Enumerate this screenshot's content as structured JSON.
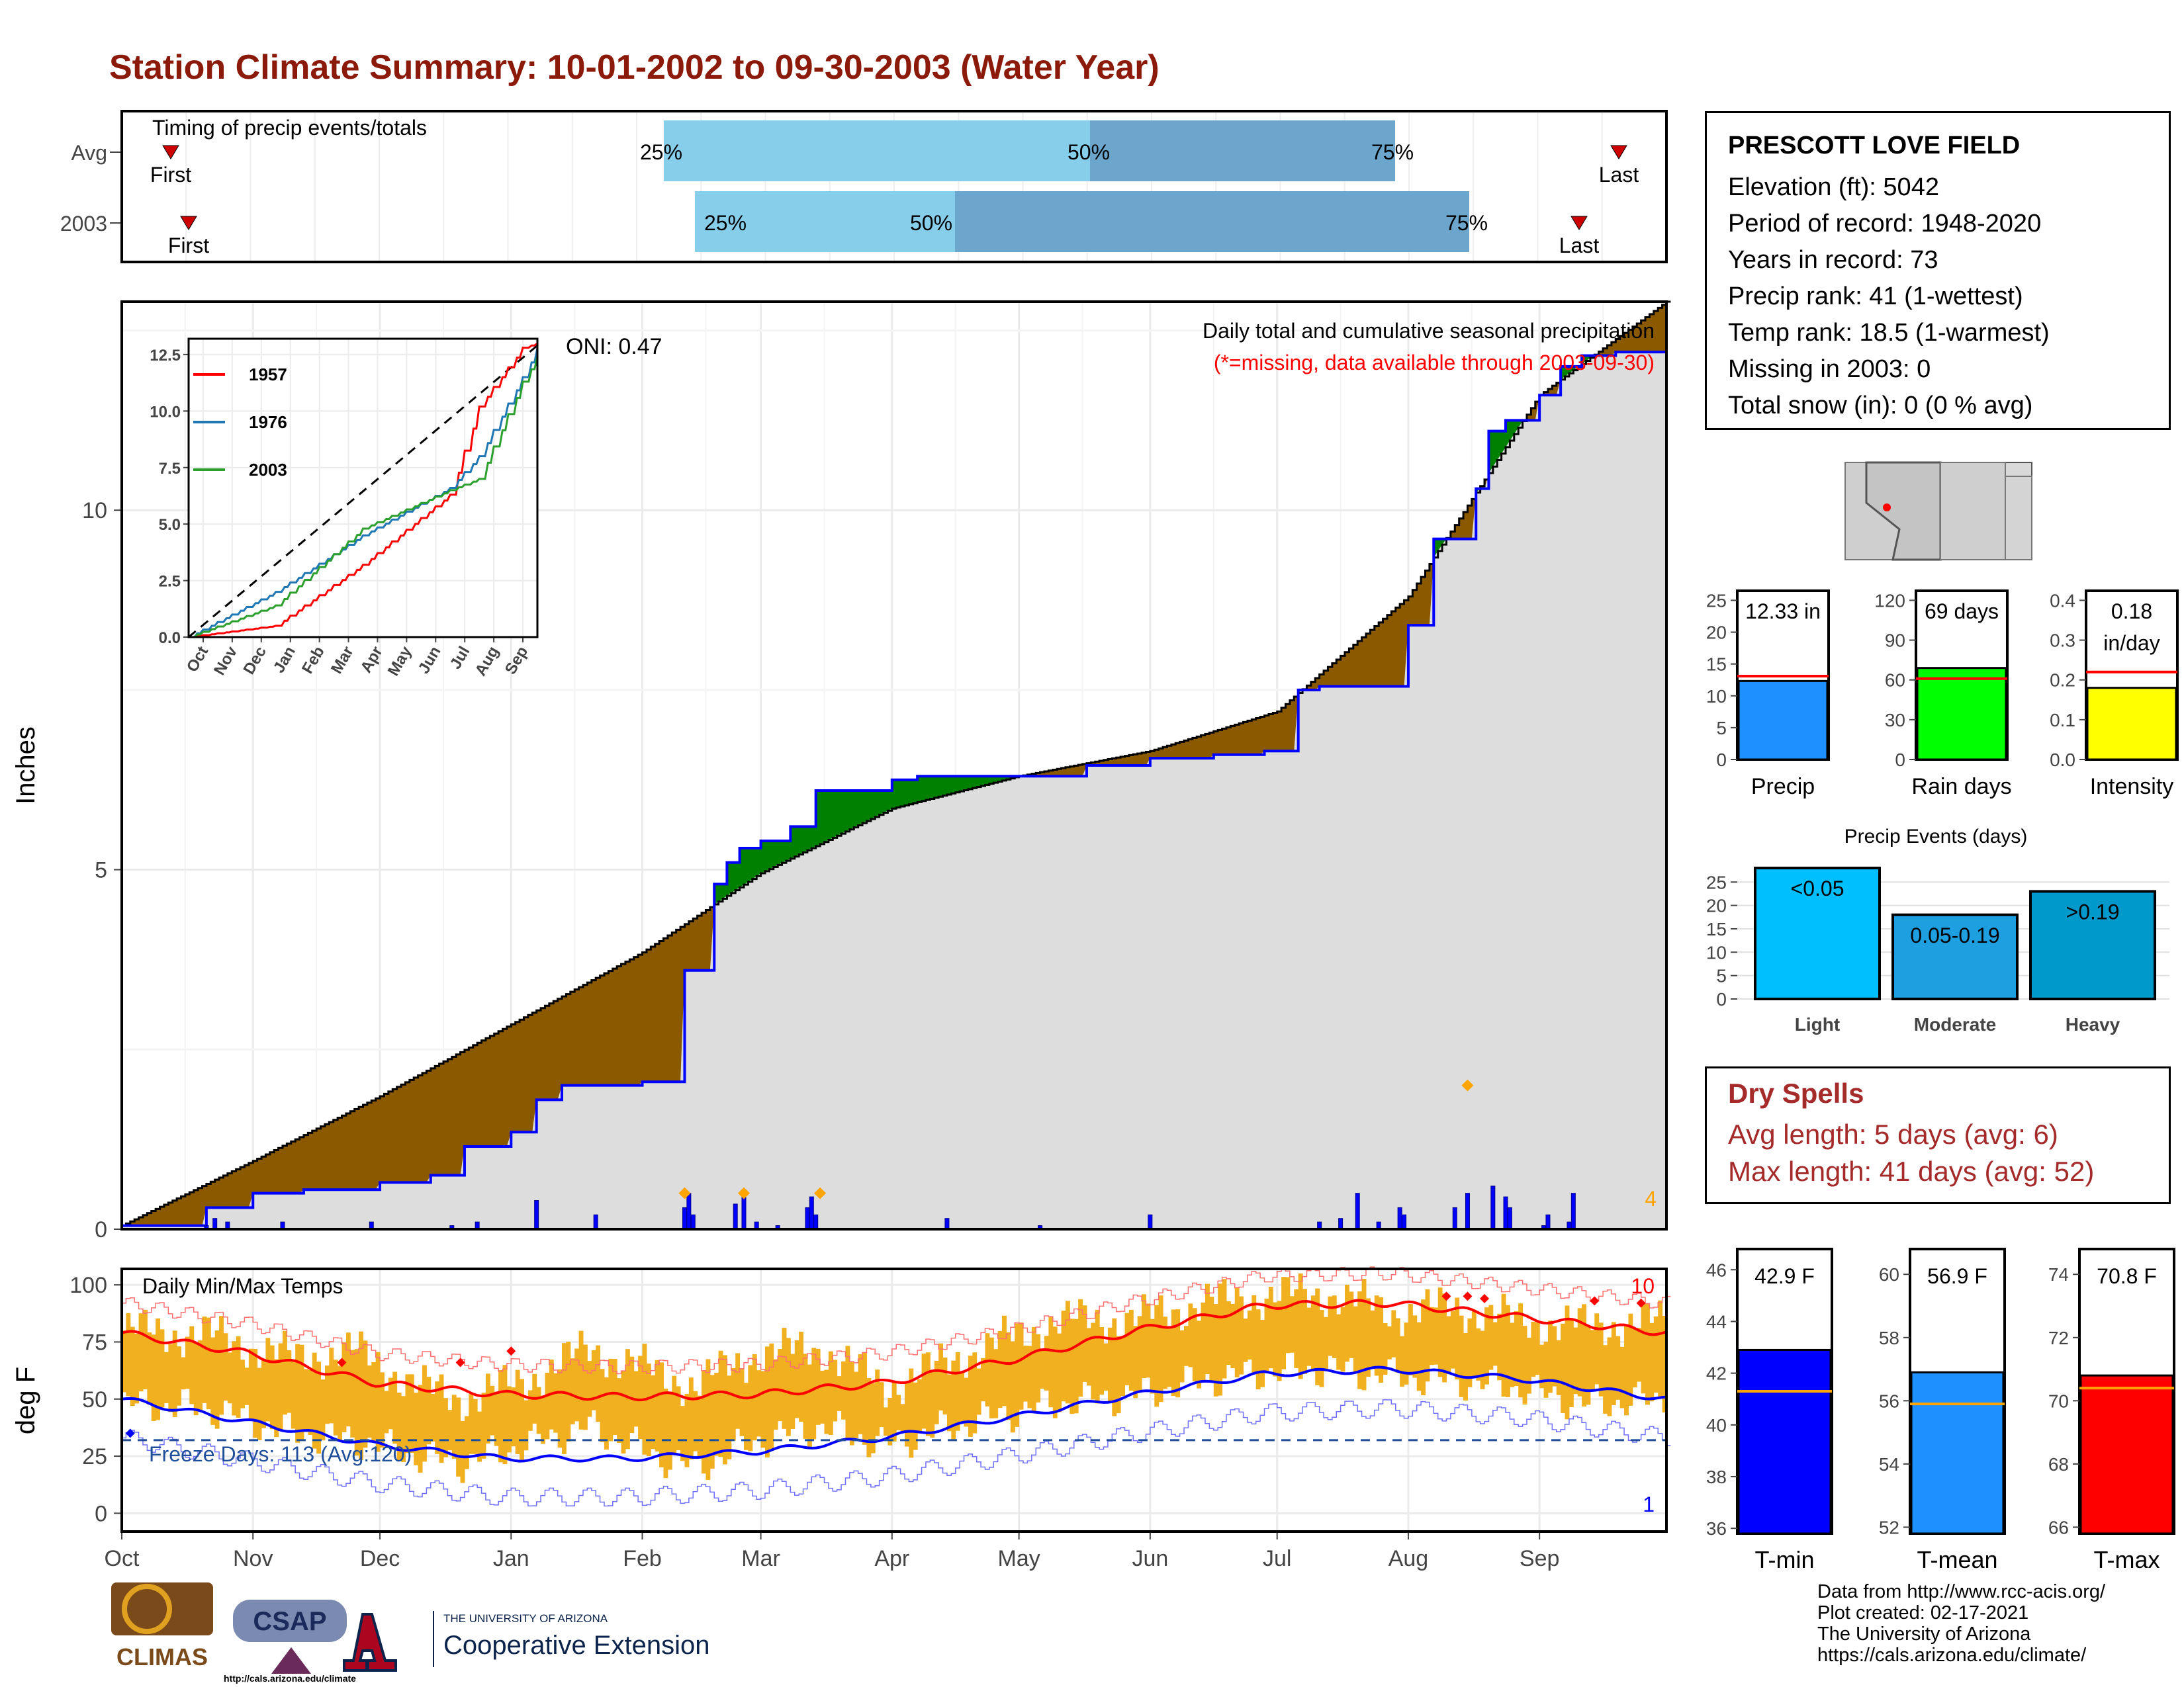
{
  "title": "Station Climate Summary: 10-01-2002 to 09-30-2003 (Water Year)",
  "timing": {
    "label": "Timing of precip events/totals",
    "rows": [
      {
        "name": "Avg",
        "first": "First",
        "last": "Last",
        "p25": "25%",
        "p50": "50%",
        "p75": "75%"
      },
      {
        "name": "2003",
        "first": "First",
        "last": "Last",
        "p25": "25%",
        "p50": "50%",
        "p75": "75%"
      }
    ]
  },
  "station": {
    "name": "PRESCOTT LOVE FIELD",
    "lines": [
      "Elevation (ft): 5042",
      "Period of record: 1948-2020",
      "Years in record: 73",
      "Precip rank: 41 (1-wettest)",
      "Temp rank: 18.5 (1-warmest)",
      "Missing in 2003: 0",
      "Total snow (in): 0 (0 % avg)"
    ]
  },
  "precip_panel": {
    "ylabel": "Inches",
    "title": "Daily total and cumulative seasonal precipitation",
    "subtitle": "(*=missing, data available through 2003-09-30)",
    "oni": "ONI: 0.47",
    "count_label": "4"
  },
  "temp_panel": {
    "ylabel": "deg F",
    "title": "Daily Min/Max Temps",
    "freeze": "Freeze Days: 113 (Avg:120)",
    "count_high": "10",
    "count_low": "1"
  },
  "dry_spells": {
    "title": "Dry Spells",
    "avg": "Avg length: 5 days (avg: 6)",
    "max": "Max length: 41 days (avg: 52)"
  },
  "events_title": "Precip Events (days)",
  "footer": [
    "Data from http://www.rcc-acis.org/",
    "Plot created: 02-17-2021",
    "The University of Arizona",
    "https://cals.arizona.edu/climate/"
  ],
  "logos": {
    "climas": "CLIMAS",
    "csap": "CSAP",
    "csap_url": "http://cals.arizona.edu/climate",
    "ua_small": "THE UNIVERSITY OF ARIZONA",
    "ua_big": "Cooperative Extension"
  },
  "colors": {
    "title": "#8B1A0A",
    "deficit": "#8B5A00",
    "surplus": "#008000",
    "avg_cum": "#DDDDDD",
    "bars": "#0000FF",
    "temp_range": "#F0B020",
    "tmax_avg": "#FF0000",
    "tmin_avg": "#0000FF"
  },
  "chart_data": [
    {
      "type": "line",
      "name": "cumulative precipitation",
      "xlabel": "",
      "ylabel": "Inches",
      "x_ticks": [
        "Oct",
        "Nov",
        "Dec",
        "Jan",
        "Feb",
        "Mar",
        "Apr",
        "May",
        "Jun",
        "Jul",
        "Aug",
        "Sep"
      ],
      "y_ticks": [
        0,
        5,
        10
      ],
      "ylim": [
        0,
        12.9
      ],
      "avg_cumulative": {
        "day": [
          0,
          31,
          61,
          92,
          123,
          151,
          182,
          212,
          243,
          273,
          304,
          335,
          365
        ],
        "value": [
          0.05,
          0.95,
          1.85,
          2.85,
          3.85,
          4.95,
          5.85,
          6.3,
          6.65,
          7.2,
          8.8,
          11.6,
          12.9
        ]
      },
      "year_cumulative": {
        "day": [
          0,
          20,
          31,
          43,
          61,
          73,
          81,
          92,
          98,
          104,
          123,
          133,
          140,
          143,
          146,
          151,
          158,
          164,
          182,
          188,
          212,
          228,
          243,
          258,
          270,
          278,
          283,
          304,
          310,
          320,
          323,
          327,
          335,
          340,
          345,
          353,
          365
        ],
        "value": [
          0.05,
          0.3,
          0.5,
          0.55,
          0.65,
          0.75,
          1.15,
          1.35,
          1.8,
          2.0,
          2.05,
          3.6,
          4.8,
          5.1,
          5.3,
          5.4,
          5.6,
          6.1,
          6.25,
          6.3,
          6.3,
          6.45,
          6.55,
          6.6,
          6.65,
          7.5,
          7.55,
          8.4,
          9.6,
          10.3,
          11.1,
          11.25,
          11.6,
          12.0,
          12.15,
          12.2,
          12.2
        ]
      },
      "daily_bars": {
        "day": [
          20,
          22,
          25,
          38,
          59,
          78,
          84,
          98,
          112,
          133,
          134,
          135,
          145,
          147,
          150,
          155,
          162,
          163,
          164,
          195,
          217,
          243,
          283,
          288,
          292,
          297,
          302,
          303,
          315,
          318,
          324,
          327,
          328,
          336,
          337,
          342,
          343
        ],
        "value": [
          0.05,
          0.15,
          0.1,
          0.1,
          0.1,
          0.05,
          0.1,
          0.4,
          0.2,
          0.3,
          0.5,
          0.2,
          0.35,
          0.45,
          0.1,
          0.05,
          0.3,
          0.45,
          0.2,
          0.15,
          0.05,
          0.2,
          0.1,
          0.15,
          0.5,
          0.1,
          0.3,
          0.2,
          0.3,
          0.5,
          0.6,
          0.45,
          0.3,
          0.05,
          0.2,
          0.1,
          0.5
        ]
      },
      "markers": {
        "day": [
          133,
          147,
          165,
          318
        ],
        "value": [
          0.5,
          0.5,
          0.5,
          2.0
        ]
      },
      "inset": {
        "series": [
          {
            "name": "1957",
            "x": [
              0,
              3,
              6,
              9,
              10,
              11.5,
              12
            ],
            "y": [
              0,
              0.5,
              3.2,
              6.3,
              10.2,
              12.8,
              13
            ]
          },
          {
            "name": "1976",
            "x": [
              0,
              3,
              6,
              9,
              10,
              11.5,
              12
            ],
            "y": [
              0,
              2,
              4.5,
              6.6,
              8,
              11.5,
              12.8
            ]
          },
          {
            "name": "2003",
            "x": [
              0,
              3,
              6,
              9,
              10,
              11.5,
              12
            ],
            "y": [
              0,
              1.4,
              4.8,
              6.5,
              7,
              11.3,
              12.4
            ]
          }
        ],
        "y_ticks": [
          0.0,
          2.5,
          5.0,
          7.5,
          10.0,
          12.5
        ],
        "x_ticks": [
          "Oct",
          "Nov",
          "Dec",
          "Jan",
          "Feb",
          "Mar",
          "Apr",
          "May",
          "Jun",
          "Jul",
          "Aug",
          "Sep"
        ]
      }
    },
    {
      "type": "area",
      "name": "daily min/max temps",
      "ylabel": "deg F",
      "y_ticks": [
        0,
        25,
        50,
        75,
        100
      ],
      "ylim": [
        -8,
        107
      ],
      "freeze_line": 32,
      "avg_tmax": {
        "day": [
          0,
          30,
          60,
          90,
          120,
          150,
          180,
          210,
          240,
          270,
          300,
          330,
          365
        ],
        "value": [
          79,
          70,
          57,
          52,
          51,
          52,
          57,
          67,
          80,
          91,
          92,
          86,
          79
        ]
      },
      "avg_tmin": {
        "day": [
          0,
          30,
          60,
          90,
          120,
          150,
          180,
          210,
          240,
          270,
          300,
          330,
          365
        ],
        "value": [
          50,
          40,
          30,
          24,
          24,
          27,
          33,
          42,
          52,
          61,
          63,
          59,
          50
        ]
      },
      "tmax": {
        "day": [
          0,
          20,
          40,
          55,
          70,
          80,
          95,
          110,
          125,
          135,
          150,
          165,
          180,
          200,
          220,
          240,
          255,
          270,
          285,
          300,
          315,
          330,
          345,
          365
        ],
        "value": [
          80,
          78,
          68,
          71,
          55,
          50,
          58,
          72,
          62,
          56,
          70,
          72,
          55,
          70,
          84,
          85,
          92,
          95,
          96,
          88,
          90,
          84,
          82,
          84
        ]
      },
      "tmin": {
        "day": [
          0,
          20,
          40,
          55,
          70,
          80,
          95,
          110,
          125,
          135,
          150,
          165,
          180,
          200,
          220,
          240,
          255,
          270,
          285,
          300,
          315,
          330,
          345,
          365
        ],
        "value": [
          48,
          46,
          35,
          32,
          25,
          22,
          30,
          38,
          26,
          20,
          32,
          38,
          30,
          40,
          48,
          52,
          58,
          62,
          63,
          60,
          58,
          55,
          48,
          50
        ]
      }
    },
    {
      "type": "bar",
      "name": "precip summary",
      "categories": [
        "Precip",
        "Rain days",
        "Intensity"
      ],
      "values": [
        12.33,
        69,
        0.18
      ],
      "labels": [
        "12.33 in",
        "69 days",
        "0.18 in/day"
      ],
      "averages": [
        13.1,
        61,
        0.22
      ],
      "y_ticks": [
        [
          0,
          5,
          10,
          15,
          20,
          25
        ],
        [
          0,
          30,
          60,
          90,
          120
        ],
        [
          0.0,
          0.1,
          0.2,
          0.3,
          0.4
        ]
      ]
    },
    {
      "type": "bar",
      "name": "precip events",
      "categories": [
        "Light",
        "Moderate",
        "Heavy"
      ],
      "values": [
        28,
        18,
        23
      ],
      "labels": [
        "<0.05",
        "0.05-0.19",
        ">0.19"
      ],
      "y_ticks": [
        0,
        5,
        10,
        15,
        20,
        25
      ]
    },
    {
      "type": "bar",
      "name": "temperature summary",
      "categories": [
        "T-min",
        "T-mean",
        "T-max"
      ],
      "values": [
        42.9,
        56.9,
        70.8
      ],
      "labels": [
        "42.9 F",
        "56.9 F",
        "70.8 F"
      ],
      "averages": [
        41.3,
        55.9,
        70.4
      ],
      "y_ticks": [
        [
          36,
          38,
          40,
          42,
          44,
          46
        ],
        [
          52,
          54,
          56,
          58,
          60
        ],
        [
          66,
          68,
          70,
          72,
          74
        ]
      ]
    }
  ]
}
